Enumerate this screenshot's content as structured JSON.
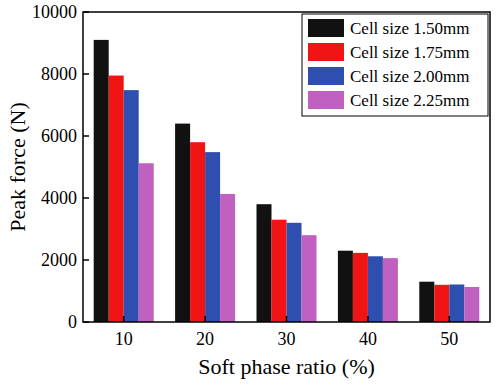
{
  "chart_data": {
    "type": "bar",
    "x_label": "Soft phase ratio (%)",
    "y_label": "Peak force (N)",
    "categories": [
      "10",
      "20",
      "30",
      "40",
      "50"
    ],
    "series": [
      {
        "name": "Cell size 1.50mm",
        "color": "#111111",
        "values": [
          9100,
          6400,
          3800,
          2300,
          1300
        ]
      },
      {
        "name": "Cell size 1.75mm",
        "color": "#f01414",
        "values": [
          7950,
          5800,
          3300,
          2230,
          1200
        ]
      },
      {
        "name": "Cell size 2.00mm",
        "color": "#2f4fb0",
        "values": [
          7480,
          5480,
          3200,
          2120,
          1210
        ]
      },
      {
        "name": "Cell size 2.25mm",
        "color": "#c060c0",
        "values": [
          5120,
          4130,
          2800,
          2060,
          1130
        ]
      }
    ],
    "ylim": [
      0,
      10000
    ],
    "yticks": [
      0,
      2000,
      4000,
      6000,
      8000,
      10000
    ],
    "grid": false,
    "legend": "upper-right"
  }
}
